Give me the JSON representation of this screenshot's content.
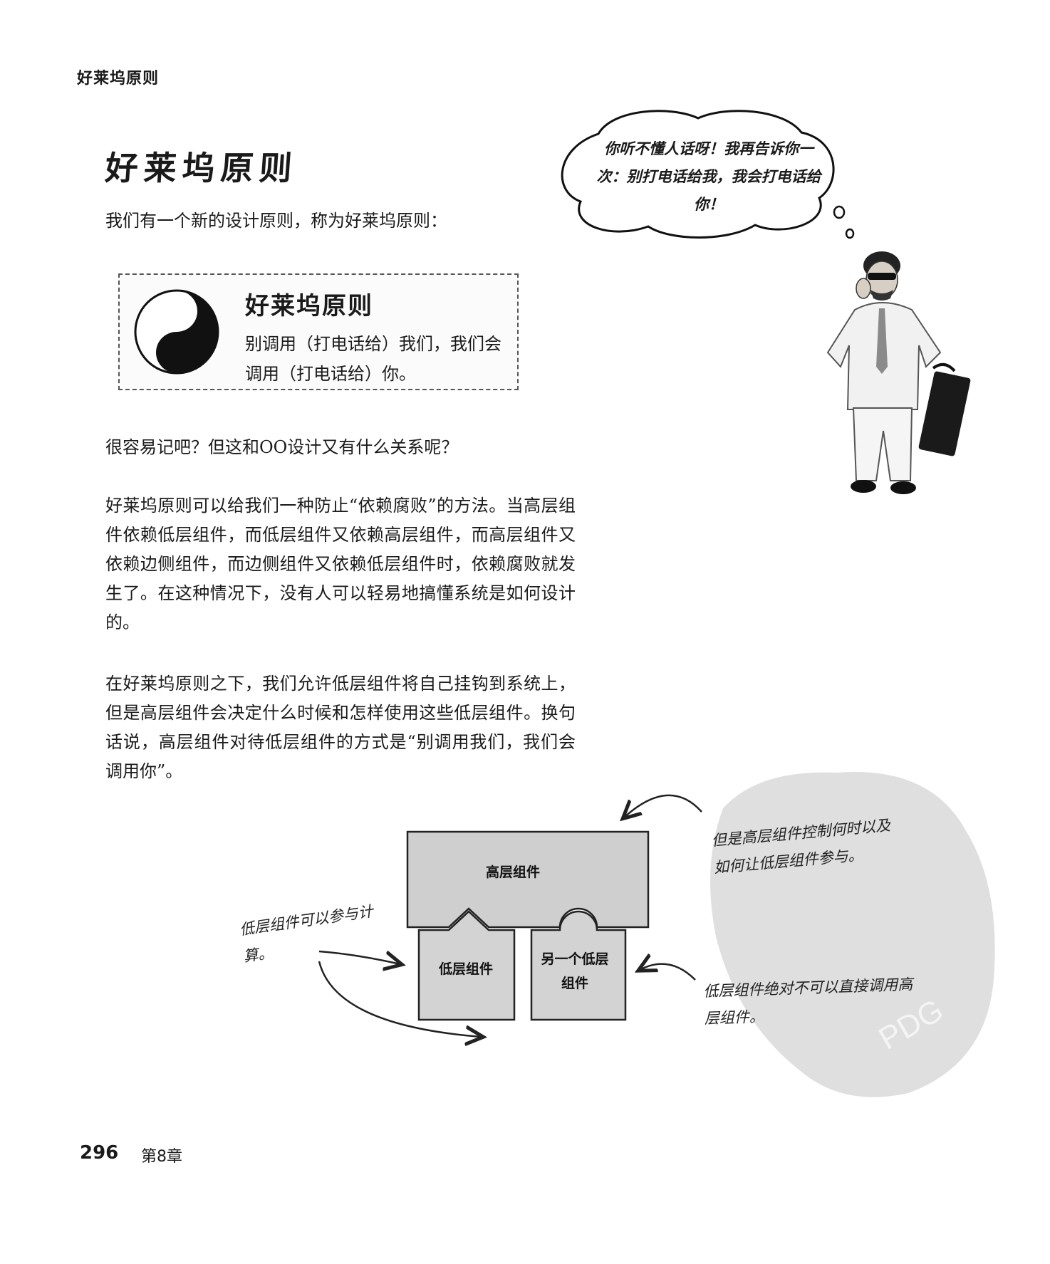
{
  "header": {
    "running_head": "好莱坞原则"
  },
  "title": "好莱坞原则",
  "intro": "我们有一个新的设计原则，称为好莱坞原则：",
  "principle_box": {
    "title": "好莱坞原则",
    "text": "别调用（打电话给）我们，我们会调用（打电话给）你。",
    "icon": "yin-yang-icon"
  },
  "paragraphs": [
    "很容易记吧？但这和OO设计又有什么关系呢？",
    "好莱坞原则可以给我们一种防止“依赖腐败”的方法。当高层组件依赖低层组件，而低层组件又依赖高层组件，而高层组件又依赖边侧组件，而边侧组件又依赖低层组件时，依赖腐败就发生了。在这种情况下，没有人可以轻易地搞懂系统是如何设计的。",
    "在好莱坞原则之下，我们允许低层组件将自己挂钩到系统上，但是高层组件会决定什么时候和怎样使用这些低层组件。换句话说，高层组件对待低层组件的方式是“别调用我们，我们会调用你”。"
  ],
  "speech_bubble": "你听不懂人话呀！我再告诉你一次：别打电话给我，我会打电话给你！",
  "diagram": {
    "high_component": "高层组件",
    "low_component": "低层组件",
    "another_low_component": "另一个低层组件",
    "note_left": "低层组件可以参与计算。",
    "note_top_right": "但是高层组件控制何时以及如何让低层组件参与。",
    "note_bottom_right": "低层组件绝对不可以直接调用高层组件。"
  },
  "watermark": "PDG",
  "footer": {
    "page_number": "296",
    "chapter": "第8章"
  }
}
